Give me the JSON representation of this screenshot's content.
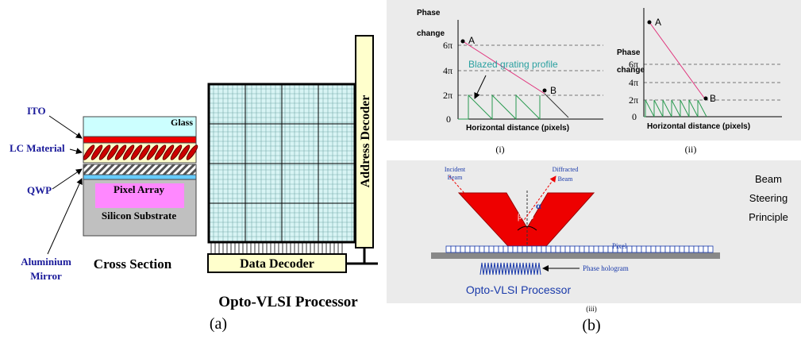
{
  "panel_a": {
    "labels": {
      "ito": "ITO",
      "lc_material": "LC Material",
      "qwp": "QWP",
      "aluminium_mirror": [
        "Aluminium",
        "Mirror"
      ]
    },
    "cross_section": {
      "glass": "Glass",
      "pixel_array": "Pixel Array",
      "substrate": "Silicon Substrate",
      "caption": "Cross Section"
    },
    "processor": {
      "address_decoder": "Address Decoder",
      "data_decoder": "Data Decoder",
      "caption": "Opto-VLSI Processor"
    },
    "caption": "(a)"
  },
  "panel_b": {
    "plot_i": {
      "y_label": [
        "Phase",
        "change"
      ],
      "ticks": [
        "6π",
        "4π",
        "2π",
        "0"
      ],
      "point_a": "A",
      "point_b": "B",
      "annotation": "Blazed grating profile",
      "x_label": "Horizontal distance (pixels)",
      "caption": "(i)"
    },
    "plot_ii": {
      "y_label": [
        "Phase",
        "change"
      ],
      "ticks": [
        "6π",
        "4π",
        "2π",
        "0"
      ],
      "point_a": "A",
      "point_b": "B",
      "x_label": "Horizontal distance (pixels)",
      "caption": "(ii)"
    },
    "plot_iii": {
      "incident": [
        "Incident",
        "Beam"
      ],
      "diffracted": [
        "Diffracted",
        "Beam"
      ],
      "beta": "β",
      "alpha": "α",
      "pixel": "Pixel",
      "hologram": "Phase hologram",
      "processor": "Opto-VLSI Processor",
      "principle": [
        "Beam",
        "Steering",
        "Principle"
      ],
      "caption": "(iii)"
    },
    "caption": "(b)"
  }
}
